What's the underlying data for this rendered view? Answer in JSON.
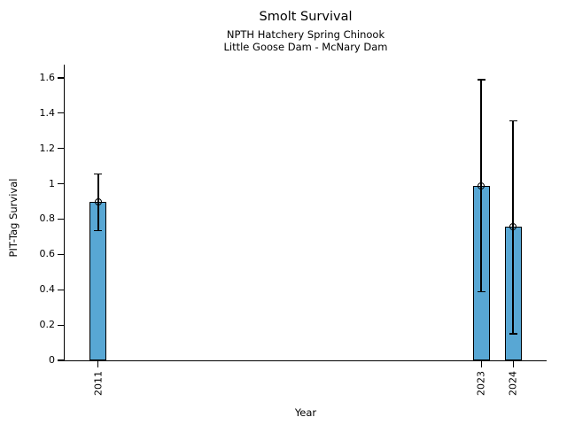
{
  "chart_data": {
    "type": "bar",
    "title": "Smolt Survival",
    "subtitle_line1": "NPTH Hatchery Spring Chinook",
    "subtitle_line2": "Little Goose Dam - McNary Dam",
    "xlabel": "Year",
    "ylabel": "PIT-Tag Survival",
    "categories": [
      "2011",
      "2023",
      "2024"
    ],
    "x": [
      2011,
      2023,
      2024
    ],
    "values": [
      0.9,
      0.99,
      0.755
    ],
    "error_low": [
      0.735,
      0.39,
      0.15
    ],
    "error_high": [
      1.055,
      1.59,
      1.355
    ],
    "marker": "open-circle",
    "xlim": [
      2009.95,
      2025.05
    ],
    "ylim": [
      0,
      1.675
    ],
    "yticks": [
      0,
      0.2,
      0.4,
      0.6,
      0.8,
      1.0,
      1.2,
      1.4,
      1.6
    ],
    "ytick_labels": [
      "0",
      "0.2",
      "0.4",
      "0.6",
      "0.8",
      "1",
      "1.2",
      "1.4",
      "1.6"
    ],
    "grid": false,
    "legend": "none",
    "bar_color": "#58a7d4",
    "bar_edge_color": "#000000",
    "error_color": "#000000",
    "axis_color": "#000000",
    "background_color": "#ffffff"
  }
}
